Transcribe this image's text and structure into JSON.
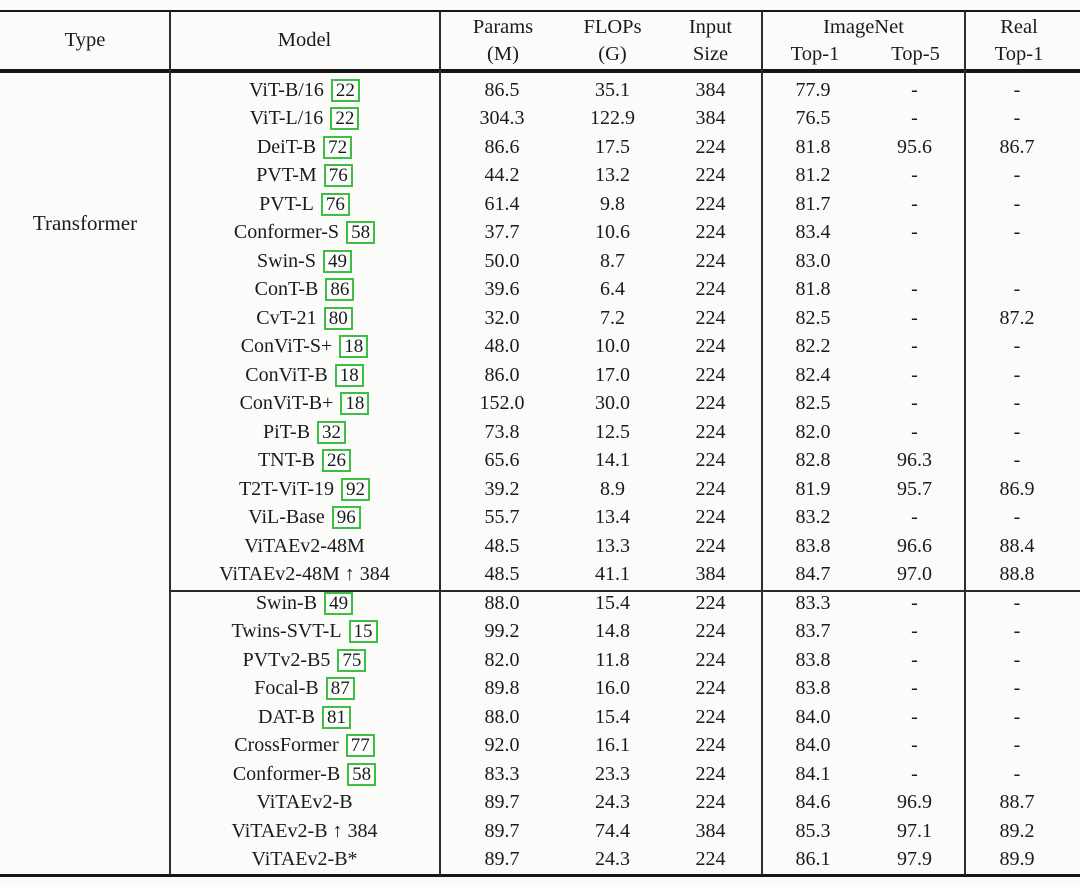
{
  "table": {
    "header": {
      "type": "Type",
      "model": "Model",
      "params_line1": "Params",
      "params_line2": "(M)",
      "flops_line1": "FLOPs",
      "flops_line2": "(G)",
      "input_line1": "Input",
      "input_line2": "Size",
      "imagenet": "ImageNet",
      "imagenet_top1": "Top-1",
      "imagenet_top5": "Top-5",
      "real_line1": "Real",
      "real_line2": "Top-1"
    },
    "type_label": "Transformer",
    "group_break_after_row": 18,
    "rows": [
      {
        "model": "ViT-B/16",
        "cite": "22",
        "params": "86.5",
        "flops": "35.1",
        "input": "384",
        "top1": "77.9",
        "top5": "-",
        "real": "-"
      },
      {
        "model": "ViT-L/16",
        "cite": "22",
        "params": "304.3",
        "flops": "122.9",
        "input": "384",
        "top1": "76.5",
        "top5": "-",
        "real": "-"
      },
      {
        "model": "DeiT-B",
        "cite": "72",
        "params": "86.6",
        "flops": "17.5",
        "input": "224",
        "top1": "81.8",
        "top5": "95.6",
        "real": "86.7"
      },
      {
        "model": "PVT-M",
        "cite": "76",
        "params": "44.2",
        "flops": "13.2",
        "input": "224",
        "top1": "81.2",
        "top5": "-",
        "real": "-"
      },
      {
        "model": "PVT-L",
        "cite": "76",
        "params": "61.4",
        "flops": "9.8",
        "input": "224",
        "top1": "81.7",
        "top5": "-",
        "real": "-"
      },
      {
        "model": "Conformer-S",
        "cite": "58",
        "params": "37.7",
        "flops": "10.6",
        "input": "224",
        "top1": "83.4",
        "top5": "-",
        "real": "-"
      },
      {
        "model": "Swin-S",
        "cite": "49",
        "params": "50.0",
        "flops": "8.7",
        "input": "224",
        "top1": "83.0",
        "top5": "",
        "real": ""
      },
      {
        "model": "ConT-B",
        "cite": "86",
        "params": "39.6",
        "flops": "6.4",
        "input": "224",
        "top1": "81.8",
        "top5": "-",
        "real": "-"
      },
      {
        "model": "CvT-21",
        "cite": "80",
        "params": "32.0",
        "flops": "7.2",
        "input": "224",
        "top1": "82.5",
        "top5": "-",
        "real": "87.2"
      },
      {
        "model": "ConViT-S+",
        "cite": "18",
        "params": "48.0",
        "flops": "10.0",
        "input": "224",
        "top1": "82.2",
        "top5": "-",
        "real": "-"
      },
      {
        "model": "ConViT-B",
        "cite": "18",
        "params": "86.0",
        "flops": "17.0",
        "input": "224",
        "top1": "82.4",
        "top5": "-",
        "real": "-"
      },
      {
        "model": "ConViT-B+",
        "cite": "18",
        "params": "152.0",
        "flops": "30.0",
        "input": "224",
        "top1": "82.5",
        "top5": "-",
        "real": "-"
      },
      {
        "model": "PiT-B",
        "cite": "32",
        "params": "73.8",
        "flops": "12.5",
        "input": "224",
        "top1": "82.0",
        "top5": "-",
        "real": "-"
      },
      {
        "model": "TNT-B",
        "cite": "26",
        "params": "65.6",
        "flops": "14.1",
        "input": "224",
        "top1": "82.8",
        "top5": "96.3",
        "real": "-"
      },
      {
        "model": "T2T-ViT-19",
        "cite": "92",
        "params": "39.2",
        "flops": "8.9",
        "input": "224",
        "top1": "81.9",
        "top5": "95.7",
        "real": "86.9"
      },
      {
        "model": "ViL-Base",
        "cite": "96",
        "params": "55.7",
        "flops": "13.4",
        "input": "224",
        "top1": "83.2",
        "top5": "-",
        "real": "-"
      },
      {
        "model": "ViTAEv2-48M",
        "cite": "",
        "params": "48.5",
        "flops": "13.3",
        "input": "224",
        "top1": "83.8",
        "top5": "96.6",
        "real": "88.4"
      },
      {
        "model": "ViTAEv2-48M ↑ 384",
        "cite": "",
        "params": "48.5",
        "flops": "41.1",
        "input": "384",
        "top1": "84.7",
        "top5": "97.0",
        "real": "88.8"
      },
      {
        "model": "Swin-B",
        "cite": "49",
        "params": "88.0",
        "flops": "15.4",
        "input": "224",
        "top1": "83.3",
        "top5": "-",
        "real": "-"
      },
      {
        "model": "Twins-SVT-L",
        "cite": "15",
        "params": "99.2",
        "flops": "14.8",
        "input": "224",
        "top1": "83.7",
        "top5": "-",
        "real": "-"
      },
      {
        "model": "PVTv2-B5",
        "cite": "75",
        "params": "82.0",
        "flops": "11.8",
        "input": "224",
        "top1": "83.8",
        "top5": "-",
        "real": "-"
      },
      {
        "model": "Focal-B",
        "cite": "87",
        "params": "89.8",
        "flops": "16.0",
        "input": "224",
        "top1": "83.8",
        "top5": "-",
        "real": "-"
      },
      {
        "model": "DAT-B",
        "cite": "81",
        "params": "88.0",
        "flops": "15.4",
        "input": "224",
        "top1": "84.0",
        "top5": "-",
        "real": "-"
      },
      {
        "model": "CrossFormer",
        "cite": "77",
        "params": "92.0",
        "flops": "16.1",
        "input": "224",
        "top1": "84.0",
        "top5": "-",
        "real": "-"
      },
      {
        "model": "Conformer-B",
        "cite": "58",
        "params": "83.3",
        "flops": "23.3",
        "input": "224",
        "top1": "84.1",
        "top5": "-",
        "real": "-"
      },
      {
        "model": "ViTAEv2-B",
        "cite": "",
        "params": "89.7",
        "flops": "24.3",
        "input": "224",
        "top1": "84.6",
        "top5": "96.9",
        "real": "88.7"
      },
      {
        "model": "ViTAEv2-B ↑ 384",
        "cite": "",
        "params": "89.7",
        "flops": "74.4",
        "input": "384",
        "top1": "85.3",
        "top5": "97.1",
        "real": "89.2"
      },
      {
        "model": "ViTAEv2-B*",
        "cite": "",
        "params": "89.7",
        "flops": "24.3",
        "input": "224",
        "top1": "86.1",
        "top5": "97.9",
        "real": "89.9"
      }
    ]
  },
  "colors": {
    "text": "#1b1b1b",
    "rule": "#161616",
    "citation_border": "#3fbe46",
    "background": "#fbfbfa"
  }
}
